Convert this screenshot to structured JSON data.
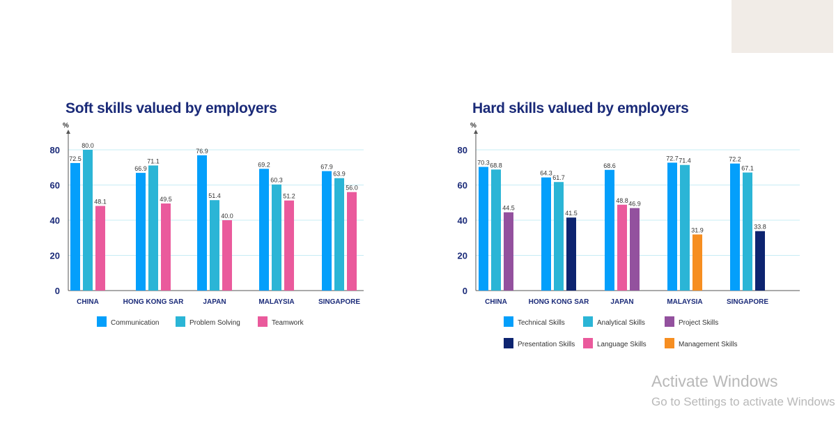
{
  "chart_data": [
    {
      "type": "bar",
      "title": "Soft skills valued by employers",
      "ylabel": "%",
      "xlabel": "",
      "ylim": [
        0,
        80
      ],
      "yticks": [
        0,
        20,
        40,
        60,
        80
      ],
      "grid": true,
      "legend_position": "bottom",
      "categories": [
        "CHINA",
        "HONG KONG SAR",
        "JAPAN",
        "MALAYSIA",
        "SINGAPORE"
      ],
      "series": [
        {
          "name": "Communication",
          "color": "#049ffb",
          "values": [
            72.5,
            66.9,
            76.9,
            69.2,
            67.9
          ]
        },
        {
          "name": "Problem Solving",
          "color": "#2bb5d6",
          "values": [
            80.0,
            71.1,
            51.4,
            60.3,
            63.9
          ]
        },
        {
          "name": "Teamwork",
          "color": "#ea5a9c",
          "values": [
            48.1,
            49.5,
            40.0,
            51.2,
            56.0
          ]
        }
      ],
      "legend": [
        "Communication",
        "Problem Solving",
        "Teamwork"
      ]
    },
    {
      "type": "bar",
      "title": "Hard skills valued by employers",
      "ylabel": "%",
      "xlabel": "",
      "ylim": [
        0,
        80
      ],
      "yticks": [
        0,
        20,
        40,
        60,
        80
      ],
      "grid": true,
      "legend_position": "bottom",
      "categories": [
        "CHINA",
        "HONG KONG SAR",
        "JAPAN",
        "MALAYSIA",
        "SINGAPORE"
      ],
      "series": [
        {
          "name": "Technical Skills",
          "color": "#049ffb",
          "values": [
            70.3,
            64.3,
            68.6,
            72.7,
            72.2
          ]
        },
        {
          "name": "Analytical Skills",
          "color": "#2bb5d6",
          "values": [
            68.8,
            61.7,
            null,
            71.4,
            67.1
          ]
        },
        {
          "name": "Language Skills",
          "color": "#ea5a9c",
          "values": [
            null,
            null,
            48.8,
            null,
            null
          ]
        },
        {
          "name": "Project Skills",
          "color": "#93519e",
          "values": [
            44.5,
            null,
            46.9,
            null,
            null
          ]
        },
        {
          "name": "Presentation Skills",
          "color": "#0d2470",
          "values": [
            null,
            41.5,
            null,
            null,
            33.8
          ]
        },
        {
          "name": "Management Skills",
          "color": "#f68e21",
          "values": [
            null,
            null,
            null,
            31.9,
            null
          ]
        }
      ],
      "legend": [
        "Technical Skills",
        "Analytical Skills",
        "Project Skills",
        "Presentation Skills",
        "Language Skills",
        "Management Skills"
      ]
    }
  ],
  "watermark": {
    "line1": "Activate Windows",
    "line2": "Go to Settings to activate Windows."
  }
}
